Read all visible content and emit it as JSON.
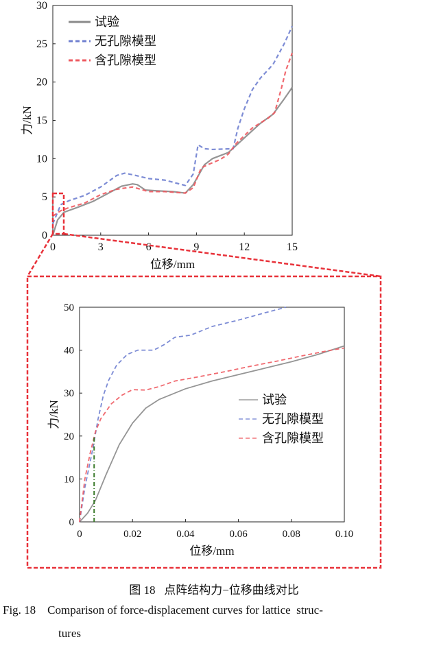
{
  "chart_data": [
    {
      "type": "line",
      "xlabel": "位移/mm",
      "ylabel": "力/kN",
      "xlim": [
        0,
        15
      ],
      "ylim": [
        0,
        30
      ],
      "xticks": [
        "0",
        "3",
        "6",
        "9",
        "12",
        "15"
      ],
      "yticks": [
        "0",
        "5",
        "10",
        "15",
        "20",
        "25",
        "30"
      ],
      "grid": false,
      "legend": "top-left",
      "series": [
        {
          "name": "试验",
          "color": "#8a8a8a",
          "style": "solid",
          "x": [
            0,
            0.3,
            0.7,
            1.5,
            2.5,
            3.5,
            4.3,
            5,
            5.3,
            5.8,
            6.5,
            7.5,
            8.3,
            8.8,
            9.5,
            10,
            11,
            12,
            13,
            13.8,
            14.5,
            15
          ],
          "y": [
            0,
            2,
            3,
            3.6,
            4.4,
            5.5,
            6.4,
            6.7,
            6.6,
            5.9,
            5.8,
            5.7,
            5.5,
            6.6,
            9.2,
            10,
            10.8,
            12.7,
            14.6,
            15.8,
            17.8,
            19.3
          ]
        },
        {
          "name": "无孔隙模型",
          "color": "#6f7fd0",
          "style": "dashed",
          "x": [
            0,
            0.5,
            1,
            2,
            3,
            4,
            4.5,
            5,
            6,
            7,
            8.3,
            8.8,
            9.1,
            9.5,
            10,
            11.3,
            11.6,
            12,
            12.5,
            13,
            13.8,
            14.5,
            15
          ],
          "y": [
            1.5,
            4,
            4.5,
            5.2,
            6.3,
            7.8,
            8.1,
            7.9,
            7.4,
            7.2,
            6.5,
            8,
            11.8,
            11.3,
            11.2,
            11.3,
            14,
            16.5,
            19,
            20.5,
            22.3,
            25,
            27.3
          ]
        },
        {
          "name": "含孔隙模型",
          "color": "#ee5a60",
          "style": "dashed",
          "x": [
            0,
            0.5,
            1,
            2,
            3,
            4,
            5,
            6,
            7,
            8.3,
            8.8,
            9.3,
            9.7,
            10.5,
            11,
            11.5,
            12.5,
            13.5,
            13.9,
            14.3,
            14.6,
            15
          ],
          "y": [
            2.5,
            3.2,
            3.6,
            4.2,
            5.3,
            6,
            6.3,
            5.7,
            5.7,
            5.5,
            6.2,
            8.8,
            9.2,
            9.9,
            10.6,
            12,
            14,
            15.3,
            16,
            19,
            21.5,
            23.8
          ]
        }
      ]
    },
    {
      "type": "line",
      "xlabel": "位移/mm",
      "ylabel": "力/kN",
      "xlim": [
        0,
        0.1
      ],
      "ylim": [
        0,
        50
      ],
      "xticks": [
        "0",
        "0.02",
        "0.04",
        "0.06",
        "0.08",
        "0.10"
      ],
      "yticks": [
        "0",
        "10",
        "20",
        "30",
        "40",
        "50"
      ],
      "grid": false,
      "legend": "center-right",
      "series": [
        {
          "name": "试验",
          "color": "#8a8a8a",
          "style": "solid",
          "x": [
            0,
            0.003,
            0.006,
            0.01,
            0.015,
            0.02,
            0.025,
            0.03,
            0.04,
            0.05,
            0.06,
            0.07,
            0.08,
            0.09,
            0.1
          ],
          "y": [
            0,
            2,
            5,
            11,
            18,
            23,
            26.5,
            28.5,
            31,
            32.8,
            34.3,
            35.8,
            37.3,
            39,
            41
          ]
        },
        {
          "name": "无孔隙模型",
          "color": "#6f7fd0",
          "style": "dashed",
          "x": [
            0,
            0.002,
            0.005,
            0.007,
            0.009,
            0.011,
            0.014,
            0.018,
            0.022,
            0.028,
            0.032,
            0.036,
            0.042,
            0.05,
            0.06,
            0.07,
            0.078
          ],
          "y": [
            0,
            8,
            17,
            24,
            29.5,
            33,
            36.5,
            39,
            40,
            40,
            41.3,
            43,
            43.5,
            45.5,
            47,
            48.7,
            50
          ]
        },
        {
          "name": "含孔隙模型",
          "color": "#ee5a60",
          "style": "dashed",
          "x": [
            0,
            0.002,
            0.004,
            0.006,
            0.008,
            0.012,
            0.016,
            0.02,
            0.025,
            0.03,
            0.036,
            0.045,
            0.055,
            0.065,
            0.075,
            0.085,
            0.095,
            0.1
          ],
          "y": [
            0,
            10,
            16,
            21,
            24,
            27.5,
            29.5,
            30.8,
            30.7,
            31.5,
            32.8,
            33.8,
            35,
            36.3,
            37.5,
            38.8,
            40,
            40.5
          ]
        }
      ],
      "annotations": [
        {
          "type": "vertical-dashdot-line",
          "x": 0.0055,
          "y": [
            0,
            20
          ],
          "color": "#3a7a2a"
        }
      ]
    }
  ],
  "zoom_box_color": "#e8323a",
  "caption": {
    "cn": "图 18   点阵结构力−位移曲线对比",
    "en_line1": "Fig. 18    Comparison of force-displacement curves for lattice  struc-",
    "en_line2": "tures"
  }
}
